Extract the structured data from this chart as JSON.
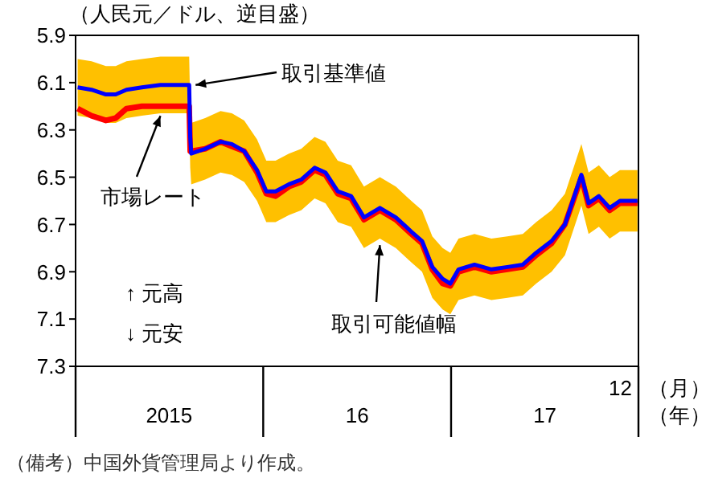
{
  "chart_data": {
    "type": "line",
    "ylabel": "（人民元／ドル、逆目盛）",
    "xlabel": "（月）（年）",
    "x": [
      "2015-01-05",
      "2015-02-01",
      "2015-03-01",
      "2015-03-20",
      "2015-04-10",
      "2015-05-10",
      "2015-06-15",
      "2015-07-15",
      "2015-08-10",
      "2015-08-12",
      "2015-08-14",
      "2015-09-10",
      "2015-10-10",
      "2015-11-01",
      "2015-11-25",
      "2015-12-20",
      "2016-01-07",
      "2016-01-25",
      "2016-02-20",
      "2016-03-15",
      "2016-04-10",
      "2016-05-01",
      "2016-05-25",
      "2016-06-20",
      "2016-07-15",
      "2016-08-15",
      "2016-09-15",
      "2016-10-15",
      "2016-11-05",
      "2016-11-25",
      "2016-12-15",
      "2016-12-30",
      "2017-01-15",
      "2017-02-15",
      "2017-03-20",
      "2017-04-20",
      "2017-05-20",
      "2017-06-15",
      "2017-07-15",
      "2017-08-10",
      "2017-09-11",
      "2017-09-25",
      "2017-10-15",
      "2017-11-05",
      "2017-11-25",
      "2017-12-29"
    ],
    "series": [
      {
        "color": "#ff0000",
        "values": [
          6.21,
          6.24,
          6.26,
          6.25,
          6.21,
          6.2,
          6.2,
          6.2,
          6.2,
          6.39,
          6.39,
          6.38,
          6.35,
          6.37,
          6.39,
          6.48,
          6.57,
          6.58,
          6.54,
          6.52,
          6.47,
          6.49,
          6.57,
          6.59,
          6.68,
          6.64,
          6.68,
          6.74,
          6.78,
          6.89,
          6.95,
          6.96,
          6.9,
          6.88,
          6.9,
          6.89,
          6.88,
          6.83,
          6.78,
          6.7,
          6.5,
          6.62,
          6.59,
          6.64,
          6.61,
          6.61
        ]
      },
      {
        "color": "#0000ff",
        "values": [
          6.12,
          6.13,
          6.15,
          6.15,
          6.13,
          6.12,
          6.11,
          6.11,
          6.11,
          6.33,
          6.4,
          6.38,
          6.35,
          6.36,
          6.39,
          6.47,
          6.56,
          6.56,
          6.53,
          6.51,
          6.46,
          6.48,
          6.56,
          6.58,
          6.67,
          6.63,
          6.67,
          6.73,
          6.77,
          6.88,
          6.93,
          6.95,
          6.89,
          6.87,
          6.89,
          6.88,
          6.87,
          6.82,
          6.77,
          6.7,
          6.49,
          6.61,
          6.58,
          6.63,
          6.6,
          6.6
        ],
        "lower": [
          6.0,
          6.01,
          6.03,
          6.03,
          6.01,
          6.0,
          5.99,
          5.99,
          5.99,
          6.2,
          6.27,
          6.25,
          6.22,
          6.23,
          6.26,
          6.34,
          6.43,
          6.43,
          6.4,
          6.38,
          6.33,
          6.35,
          6.43,
          6.45,
          6.54,
          6.5,
          6.54,
          6.6,
          6.64,
          6.75,
          6.8,
          6.82,
          6.76,
          6.74,
          6.76,
          6.75,
          6.74,
          6.69,
          6.64,
          6.57,
          6.36,
          6.48,
          6.45,
          6.5,
          6.47,
          6.47
        ],
        "upper": [
          6.24,
          6.25,
          6.27,
          6.27,
          6.25,
          6.24,
          6.23,
          6.23,
          6.23,
          6.46,
          6.53,
          6.51,
          6.48,
          6.49,
          6.52,
          6.6,
          6.69,
          6.69,
          6.66,
          6.64,
          6.59,
          6.61,
          6.69,
          6.71,
          6.8,
          6.76,
          6.8,
          6.86,
          6.9,
          7.01,
          7.06,
          7.08,
          7.02,
          7.0,
          7.02,
          7.01,
          7.0,
          6.95,
          6.9,
          6.83,
          6.62,
          6.74,
          6.71,
          6.76,
          6.73,
          6.73
        ]
      }
    ],
    "xlim": [
      "2015-01-01",
      "2017-12-31"
    ],
    "xticks": [
      {
        "value": "2015-01-01",
        "label": null
      },
      {
        "value": "2015-07-02",
        "label": "2015"
      },
      {
        "value": "2016-07-02",
        "label": "16"
      },
      {
        "value": "2017-07-02",
        "label": "17"
      },
      {
        "value": "2017-12-31",
        "label": null
      }
    ],
    "ylim": [
      7.3,
      5.9
    ],
    "yticks": [
      5.9,
      6.1,
      6.3,
      6.5,
      6.7,
      6.9,
      7.1,
      7.3
    ],
    "marker": "none",
    "annotations": [
      {
        "text": "取引基準値",
        "x": "2015-08-10",
        "y": 6.11
      },
      {
        "text": "市場レート",
        "x": "2015-06-15",
        "y": 6.2
      },
      {
        "text": "取引可能値幅",
        "x": "2016-08-15",
        "y": 6.76
      },
      "12",
      "↑ 元高",
      "↓ 元安",
      "（備考）中国外貨管理局より作成。"
    ]
  }
}
